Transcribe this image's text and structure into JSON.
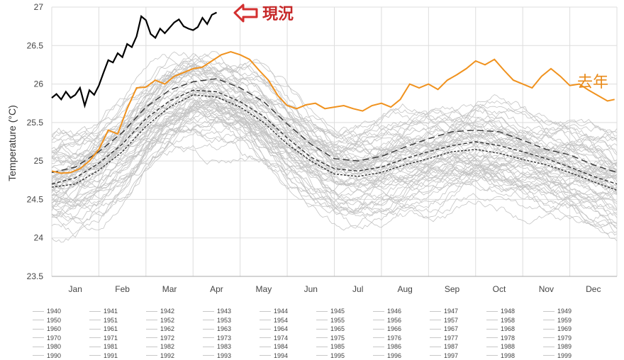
{
  "chart_data": {
    "type": "line",
    "ylabel": "Temperature (°C)",
    "ylim": [
      23.5,
      27
    ],
    "yticks": [
      "23.5",
      "24",
      "24.5",
      "25",
      "25.5",
      "26",
      "26.5",
      "27"
    ],
    "categories": [
      "Jan",
      "Feb",
      "Mar",
      "Apr",
      "May",
      "Jun",
      "Jul",
      "Aug",
      "Sep",
      "Oct",
      "Nov",
      "Dec"
    ],
    "grid": true,
    "colors": {
      "history": "#c4c4c4",
      "current": "#000000",
      "last_year": "#f0921e",
      "arrow": "#d32f2f",
      "mean_line": "#333333",
      "gridline": "#dddddd"
    },
    "annotations": {
      "current_label": "現況",
      "last_year_label": "去年"
    },
    "series_current": {
      "x_month": [
        0.0,
        0.1,
        0.2,
        0.3,
        0.4,
        0.5,
        0.6,
        0.7,
        0.8,
        0.9,
        1.0,
        1.1,
        1.2,
        1.3,
        1.4,
        1.5,
        1.6,
        1.7,
        1.8,
        1.9,
        2.0,
        2.1,
        2.2,
        2.3,
        2.4,
        2.5,
        2.6,
        2.7,
        2.8,
        2.9,
        3.0,
        3.1,
        3.2,
        3.3,
        3.4,
        3.5
      ],
      "values": [
        25.82,
        25.87,
        25.8,
        25.9,
        25.82,
        25.86,
        25.95,
        25.72,
        25.92,
        25.86,
        25.98,
        26.15,
        26.31,
        26.28,
        26.4,
        26.35,
        26.52,
        26.48,
        26.62,
        26.88,
        26.83,
        26.65,
        26.6,
        26.72,
        26.66,
        26.73,
        26.8,
        26.84,
        26.75,
        26.72,
        26.7,
        26.74,
        26.86,
        26.78,
        26.9,
        26.93
      ]
    },
    "series_last_year": {
      "x_month": [
        0.0,
        0.2,
        0.4,
        0.6,
        0.8,
        1.0,
        1.2,
        1.4,
        1.6,
        1.8,
        2.0,
        2.2,
        2.4,
        2.6,
        2.8,
        3.0,
        3.2,
        3.4,
        3.6,
        3.8,
        4.0,
        4.2,
        4.4,
        4.6,
        4.8,
        5.0,
        5.2,
        5.4,
        5.6,
        5.8,
        6.0,
        6.2,
        6.4,
        6.6,
        6.8,
        7.0,
        7.2,
        7.4,
        7.6,
        7.8,
        8.0,
        8.2,
        8.4,
        8.6,
        8.8,
        9.0,
        9.2,
        9.4,
        9.6,
        9.8,
        10.0,
        10.2,
        10.4,
        10.6,
        10.8,
        11.0,
        11.2,
        11.4,
        11.6,
        11.8,
        11.95
      ],
      "values": [
        24.87,
        24.84,
        24.85,
        24.9,
        25.0,
        25.15,
        25.4,
        25.35,
        25.68,
        25.95,
        25.96,
        26.05,
        26.0,
        26.1,
        26.15,
        26.2,
        26.22,
        26.3,
        26.38,
        26.42,
        26.38,
        26.32,
        26.18,
        26.05,
        25.85,
        25.72,
        25.68,
        25.73,
        25.75,
        25.68,
        25.7,
        25.72,
        25.68,
        25.65,
        25.72,
        25.75,
        25.7,
        25.8,
        26.0,
        25.95,
        26.0,
        25.93,
        26.05,
        26.12,
        26.2,
        26.3,
        26.25,
        26.32,
        26.18,
        26.05,
        26.0,
        25.95,
        26.1,
        26.2,
        26.1,
        25.98,
        26.0,
        25.92,
        25.85,
        25.78,
        25.8
      ]
    },
    "series_mean": {
      "x_month": [
        0,
        0.5,
        1,
        1.5,
        2,
        2.5,
        3,
        3.5,
        4,
        4.5,
        5,
        5.5,
        6,
        6.5,
        7,
        7.5,
        8,
        8.5,
        9,
        9.5,
        10,
        10.5,
        11,
        11.5,
        12
      ],
      "values": [
        24.66,
        24.7,
        24.88,
        25.12,
        25.45,
        25.7,
        25.86,
        25.83,
        25.7,
        25.5,
        25.22,
        25.0,
        24.83,
        24.8,
        24.85,
        24.95,
        25.03,
        25.12,
        25.15,
        25.1,
        25.02,
        24.95,
        24.85,
        24.73,
        24.62
      ]
    },
    "series_upper1": {
      "x_month": [
        0,
        0.5,
        1,
        1.5,
        2,
        2.5,
        3,
        3.5,
        4,
        4.5,
        5,
        5.5,
        6,
        6.5,
        7,
        7.5,
        8,
        8.5,
        9,
        9.5,
        10,
        10.5,
        11,
        11.5,
        12
      ],
      "values": [
        24.7,
        24.78,
        24.97,
        25.22,
        25.55,
        25.78,
        25.92,
        25.9,
        25.77,
        25.58,
        25.3,
        25.05,
        24.9,
        24.87,
        24.92,
        25.03,
        25.12,
        25.2,
        25.25,
        25.2,
        25.12,
        25.03,
        24.92,
        24.8,
        24.7
      ]
    },
    "series_upper2": {
      "x_month": [
        0,
        0.5,
        1,
        1.5,
        2,
        2.5,
        3,
        3.5,
        4,
        4.5,
        5,
        5.5,
        6,
        6.5,
        7,
        7.5,
        8,
        8.5,
        9,
        9.5,
        10,
        10.5,
        11,
        11.5,
        12
      ],
      "values": [
        24.85,
        24.92,
        25.12,
        25.37,
        25.7,
        25.92,
        26.03,
        26.07,
        25.95,
        25.77,
        25.48,
        25.22,
        25.03,
        25.0,
        25.06,
        25.18,
        25.29,
        25.38,
        25.4,
        25.38,
        25.27,
        25.15,
        25.08,
        24.95,
        24.85
      ]
    },
    "legend_years": [
      "1940",
      "1941",
      "1942",
      "1943",
      "1944",
      "1945",
      "1946",
      "1947",
      "1948",
      "1949",
      "1950",
      "1951",
      "1952",
      "1953",
      "1954",
      "1955",
      "1956",
      "1957",
      "1958",
      "1959",
      "1960",
      "1961",
      "1962",
      "1963",
      "1964",
      "1965",
      "1966",
      "1967",
      "1968",
      "1969",
      "1970",
      "1971",
      "1972",
      "1973",
      "1974",
      "1975",
      "1976",
      "1977",
      "1978",
      "1979",
      "1980",
      "1981",
      "1982",
      "1983",
      "1984",
      "1985",
      "1986",
      "1987",
      "1988",
      "1989",
      "1990",
      "1991",
      "1992",
      "1993",
      "1994",
      "1995",
      "1996",
      "1997",
      "1998",
      "1999"
    ]
  }
}
